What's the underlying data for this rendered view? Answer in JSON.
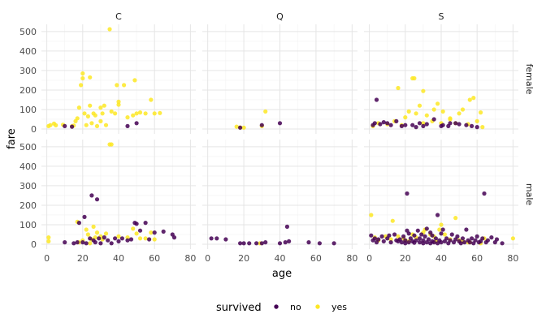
{
  "chart_data": {
    "type": "scatter",
    "title": "",
    "xlabel": "age",
    "ylabel": "fare",
    "xlim": [
      0,
      80
    ],
    "ylim": [
      0,
      512
    ],
    "x_ticks": [
      0,
      20,
      40,
      60,
      80
    ],
    "y_ticks": [
      0,
      100,
      200,
      300,
      400,
      500
    ],
    "columns": [
      "C",
      "Q",
      "S"
    ],
    "rows": [
      "female",
      "male"
    ],
    "legend": {
      "title": "survived",
      "position": "bottom",
      "entries": [
        {
          "label": "no",
          "color": "#440154"
        },
        {
          "label": "yes",
          "color": "#FDE725"
        }
      ]
    },
    "panels": [
      {
        "row": "female",
        "column": "C",
        "yes": [
          [
            1,
            15
          ],
          [
            2,
            20
          ],
          [
            4,
            28
          ],
          [
            5,
            19
          ],
          [
            9,
            22
          ],
          [
            14,
            14
          ],
          [
            15,
            18
          ],
          [
            16,
            40
          ],
          [
            17,
            55
          ],
          [
            18,
            110
          ],
          [
            19,
            225
          ],
          [
            20,
            260
          ],
          [
            20,
            285
          ],
          [
            21,
            80
          ],
          [
            22,
            20
          ],
          [
            23,
            65
          ],
          [
            24,
            265
          ],
          [
            24,
            120
          ],
          [
            25,
            30
          ],
          [
            26,
            80
          ],
          [
            27,
            70
          ],
          [
            28,
            15
          ],
          [
            30,
            110
          ],
          [
            30,
            40
          ],
          [
            31,
            80
          ],
          [
            32,
            120
          ],
          [
            33,
            20
          ],
          [
            35,
            512
          ],
          [
            36,
            90
          ],
          [
            38,
            80
          ],
          [
            39,
            225
          ],
          [
            40,
            125
          ],
          [
            40,
            140
          ],
          [
            43,
            225
          ],
          [
            45,
            60
          ],
          [
            48,
            70
          ],
          [
            49,
            250
          ],
          [
            50,
            80
          ],
          [
            52,
            85
          ],
          [
            55,
            80
          ],
          [
            58,
            150
          ],
          [
            60,
            80
          ],
          [
            63,
            82
          ]
        ],
        "no": [
          [
            10,
            15
          ],
          [
            14,
            12
          ],
          [
            45,
            15
          ],
          [
            50,
            30
          ]
        ]
      },
      {
        "row": "female",
        "column": "Q",
        "yes": [
          [
            16,
            12
          ],
          [
            18,
            8
          ],
          [
            20,
            7
          ],
          [
            30,
            15
          ],
          [
            32,
            90
          ]
        ],
        "no": [
          [
            18,
            7
          ],
          [
            30,
            20
          ],
          [
            40,
            30
          ]
        ]
      },
      {
        "row": "female",
        "column": "S",
        "yes": [
          [
            2,
            15
          ],
          [
            5,
            30
          ],
          [
            10,
            25
          ],
          [
            14,
            40
          ],
          [
            16,
            210
          ],
          [
            18,
            20
          ],
          [
            20,
            60
          ],
          [
            22,
            90
          ],
          [
            24,
            260
          ],
          [
            25,
            260
          ],
          [
            26,
            80
          ],
          [
            28,
            120
          ],
          [
            30,
            30
          ],
          [
            30,
            195
          ],
          [
            32,
            70
          ],
          [
            35,
            40
          ],
          [
            36,
            100
          ],
          [
            38,
            130
          ],
          [
            40,
            30
          ],
          [
            41,
            90
          ],
          [
            45,
            50
          ],
          [
            45,
            55
          ],
          [
            48,
            30
          ],
          [
            50,
            80
          ],
          [
            52,
            100
          ],
          [
            55,
            25
          ],
          [
            56,
            150
          ],
          [
            58,
            160
          ],
          [
            60,
            40
          ],
          [
            62,
            85
          ],
          [
            63,
            10
          ]
        ],
        "no": [
          [
            2,
            20
          ],
          [
            3,
            30
          ],
          [
            4,
            150
          ],
          [
            6,
            25
          ],
          [
            8,
            35
          ],
          [
            10,
            30
          ],
          [
            12,
            20
          ],
          [
            15,
            40
          ],
          [
            18,
            15
          ],
          [
            20,
            20
          ],
          [
            24,
            20
          ],
          [
            26,
            10
          ],
          [
            28,
            30
          ],
          [
            30,
            15
          ],
          [
            32,
            25
          ],
          [
            36,
            50
          ],
          [
            40,
            15
          ],
          [
            41,
            20
          ],
          [
            44,
            15
          ],
          [
            45,
            30
          ],
          [
            48,
            30
          ],
          [
            50,
            25
          ],
          [
            54,
            20
          ],
          [
            57,
            15
          ],
          [
            60,
            10
          ]
        ]
      },
      {
        "row": "male",
        "column": "C",
        "yes": [
          [
            1,
            35
          ],
          [
            1,
            15
          ],
          [
            17,
            115
          ],
          [
            18,
            10
          ],
          [
            20,
            20
          ],
          [
            22,
            75
          ],
          [
            23,
            50
          ],
          [
            24,
            5
          ],
          [
            25,
            25
          ],
          [
            26,
            90
          ],
          [
            27,
            35
          ],
          [
            28,
            60
          ],
          [
            30,
            40
          ],
          [
            31,
            25
          ],
          [
            33,
            55
          ],
          [
            35,
            512
          ],
          [
            36,
            512
          ],
          [
            40,
            40
          ],
          [
            45,
            35
          ],
          [
            48,
            80
          ],
          [
            50,
            55
          ],
          [
            52,
            30
          ],
          [
            55,
            30
          ],
          [
            58,
            60
          ],
          [
            60,
            25
          ]
        ],
        "no": [
          [
            10,
            10
          ],
          [
            15,
            5
          ],
          [
            17,
            10
          ],
          [
            18,
            110
          ],
          [
            20,
            10
          ],
          [
            21,
            140
          ],
          [
            22,
            5
          ],
          [
            24,
            30
          ],
          [
            25,
            250
          ],
          [
            26,
            20
          ],
          [
            27,
            10
          ],
          [
            28,
            230
          ],
          [
            29,
            30
          ],
          [
            30,
            5
          ],
          [
            32,
            35
          ],
          [
            34,
            20
          ],
          [
            36,
            5
          ],
          [
            38,
            30
          ],
          [
            40,
            15
          ],
          [
            42,
            30
          ],
          [
            45,
            20
          ],
          [
            47,
            25
          ],
          [
            49,
            110
          ],
          [
            50,
            105
          ],
          [
            52,
            70
          ],
          [
            55,
            110
          ],
          [
            57,
            25
          ],
          [
            60,
            60
          ],
          [
            65,
            65
          ],
          [
            70,
            50
          ],
          [
            71,
            35
          ]
        ]
      },
      {
        "row": "male",
        "column": "Q",
        "yes": [
          [
            29,
            5
          ]
        ],
        "no": [
          [
            2,
            30
          ],
          [
            5,
            30
          ],
          [
            10,
            25
          ],
          [
            18,
            5
          ],
          [
            20,
            5
          ],
          [
            23,
            5
          ],
          [
            27,
            5
          ],
          [
            30,
            5
          ],
          [
            32,
            10
          ],
          [
            40,
            5
          ],
          [
            43,
            10
          ],
          [
            44,
            90
          ],
          [
            45,
            15
          ],
          [
            56,
            10
          ],
          [
            62,
            5
          ],
          [
            70,
            5
          ]
        ]
      },
      {
        "row": "male",
        "column": "S",
        "yes": [
          [
            1,
            150
          ],
          [
            3,
            35
          ],
          [
            5,
            20
          ],
          [
            9,
            40
          ],
          [
            12,
            25
          ],
          [
            13,
            120
          ],
          [
            16,
            40
          ],
          [
            19,
            30
          ],
          [
            20,
            20
          ],
          [
            22,
            15
          ],
          [
            24,
            50
          ],
          [
            26,
            35
          ],
          [
            30,
            60
          ],
          [
            31,
            75
          ],
          [
            34,
            50
          ],
          [
            36,
            40
          ],
          [
            37,
            15
          ],
          [
            39,
            75
          ],
          [
            40,
            100
          ],
          [
            42,
            50
          ],
          [
            45,
            25
          ],
          [
            48,
            135
          ],
          [
            50,
            20
          ],
          [
            52,
            15
          ],
          [
            55,
            10
          ],
          [
            56,
            10
          ],
          [
            62,
            5
          ],
          [
            64,
            30
          ],
          [
            80,
            30
          ]
        ],
        "no": [
          [
            1,
            45
          ],
          [
            2,
            20
          ],
          [
            3,
            30
          ],
          [
            4,
            10
          ],
          [
            5,
            25
          ],
          [
            7,
            40
          ],
          [
            8,
            15
          ],
          [
            10,
            30
          ],
          [
            11,
            45
          ],
          [
            12,
            10
          ],
          [
            14,
            50
          ],
          [
            15,
            20
          ],
          [
            16,
            15
          ],
          [
            17,
            25
          ],
          [
            18,
            10
          ],
          [
            19,
            40
          ],
          [
            20,
            5
          ],
          [
            20,
            20
          ],
          [
            21,
            70
          ],
          [
            22,
            10
          ],
          [
            22,
            55
          ],
          [
            23,
            30
          ],
          [
            24,
            15
          ],
          [
            25,
            8
          ],
          [
            25,
            45
          ],
          [
            26,
            20
          ],
          [
            27,
            70
          ],
          [
            28,
            10
          ],
          [
            28,
            30
          ],
          [
            29,
            50
          ],
          [
            30,
            5
          ],
          [
            30,
            20
          ],
          [
            31,
            40
          ],
          [
            32,
            10
          ],
          [
            32,
            80
          ],
          [
            33,
            25
          ],
          [
            34,
            5
          ],
          [
            34,
            60
          ],
          [
            35,
            15
          ],
          [
            35,
            45
          ],
          [
            36,
            10
          ],
          [
            37,
            30
          ],
          [
            38,
            150
          ],
          [
            38,
            5
          ],
          [
            39,
            20
          ],
          [
            40,
            10
          ],
          [
            40,
            55
          ],
          [
            41,
            75
          ],
          [
            42,
            15
          ],
          [
            43,
            30
          ],
          [
            44,
            5
          ],
          [
            45,
            20
          ],
          [
            46,
            50
          ],
          [
            47,
            10
          ],
          [
            48,
            25
          ],
          [
            49,
            40
          ],
          [
            50,
            15
          ],
          [
            51,
            5
          ],
          [
            52,
            30
          ],
          [
            53,
            10
          ],
          [
            54,
            75
          ],
          [
            55,
            20
          ],
          [
            56,
            10
          ],
          [
            57,
            30
          ],
          [
            58,
            5
          ],
          [
            59,
            20
          ],
          [
            60,
            40
          ],
          [
            61,
            10
          ],
          [
            62,
            15
          ],
          [
            63,
            30
          ],
          [
            64,
            260
          ],
          [
            65,
            10
          ],
          [
            66,
            20
          ],
          [
            68,
            35
          ],
          [
            70,
            10
          ],
          [
            71,
            25
          ],
          [
            74,
            5
          ],
          [
            21,
            260
          ]
        ]
      }
    ]
  }
}
